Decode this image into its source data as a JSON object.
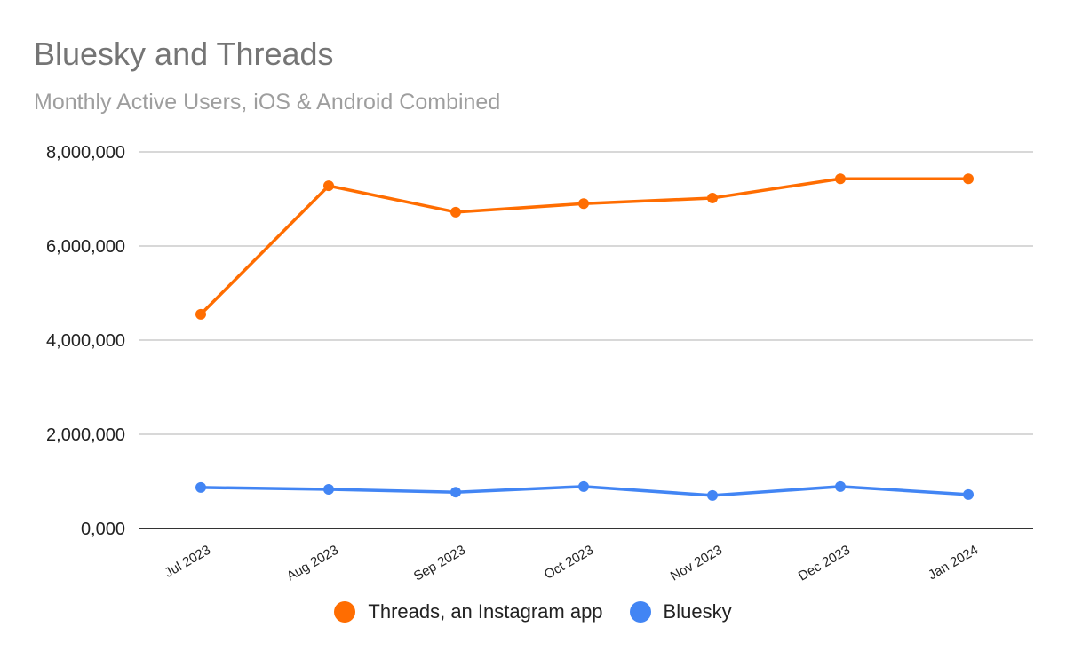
{
  "header": {
    "title": "Bluesky and Threads",
    "subtitle": "Monthly Active Users, iOS & Android Combined"
  },
  "legend": [
    {
      "label": "Threads, an Instagram app",
      "color": "#ff6d01"
    },
    {
      "label": "Bluesky",
      "color": "#4285f4"
    }
  ],
  "chart_data": {
    "type": "line",
    "title": "Bluesky and Threads",
    "subtitle": "Monthly Active Users, iOS & Android Combined",
    "xlabel": "",
    "ylabel": "",
    "ylim": [
      0,
      8000000
    ],
    "y_ticks": [
      "0,000",
      "2,000,000",
      "4,000,000",
      "6,000,000",
      "8,000,000"
    ],
    "categories": [
      "Jul 2023",
      "Aug 2023",
      "Sep 2023",
      "Oct 2023",
      "Nov 2023",
      "Dec 2023",
      "Jan 2024"
    ],
    "series": [
      {
        "name": "Threads, an Instagram app",
        "color": "#ff6d01",
        "values": [
          4550000,
          7280000,
          6720000,
          6900000,
          7020000,
          7430000,
          7430000
        ]
      },
      {
        "name": "Bluesky",
        "color": "#4285f4",
        "values": [
          870000,
          830000,
          770000,
          890000,
          700000,
          890000,
          720000
        ]
      }
    ],
    "grid": true,
    "legend_position": "bottom"
  }
}
